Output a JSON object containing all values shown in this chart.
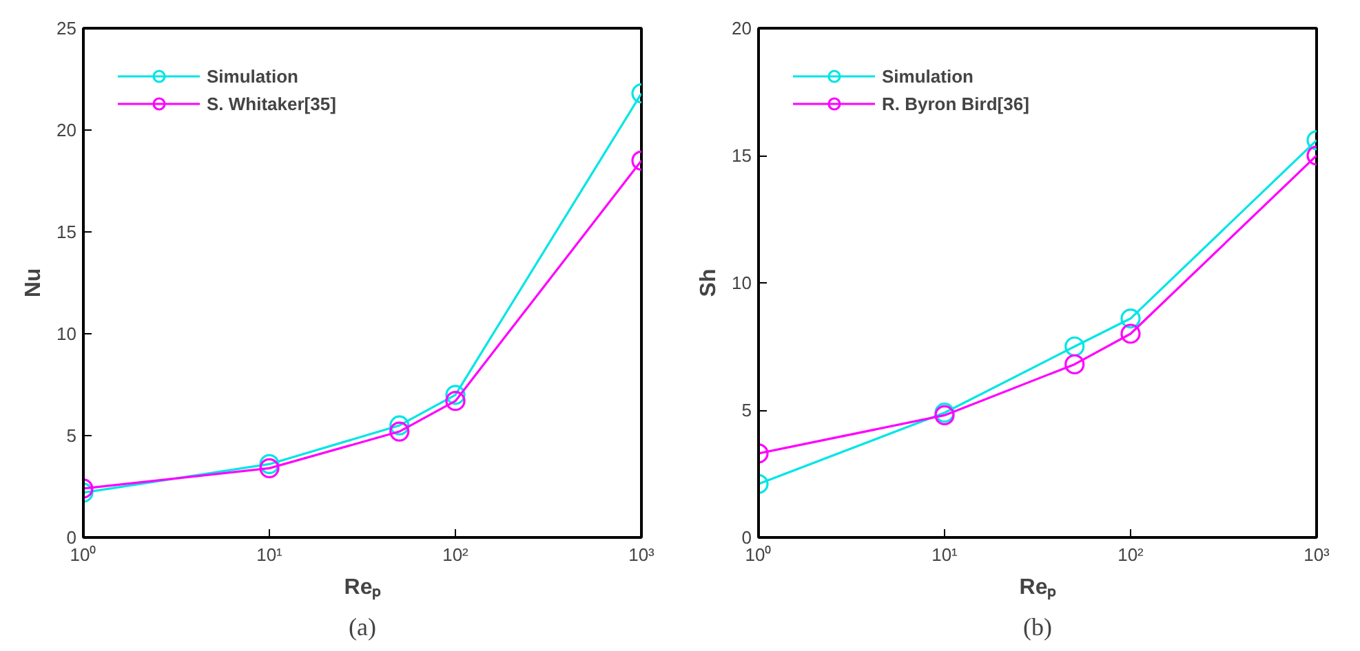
{
  "chart_data": [
    {
      "type": "line",
      "title": "(a)",
      "xlabel": "Reₚ",
      "ylabel": "Nu",
      "log": "x",
      "x": [
        1,
        10,
        50,
        100,
        1000
      ],
      "xlim": [
        1,
        1000
      ],
      "xticks": [
        {
          "value": 1,
          "label": "10⁰"
        },
        {
          "value": 10,
          "label": "10¹"
        },
        {
          "value": 100,
          "label": "10²"
        },
        {
          "value": 1000,
          "label": "10³"
        }
      ],
      "ylim": [
        0,
        25
      ],
      "yticks": [
        0,
        5,
        10,
        15,
        20,
        25
      ],
      "grid": false,
      "legend": "top left",
      "marker": "circle",
      "line_style": "solid",
      "series": [
        {
          "name": "Simulation",
          "color": "#00e5e5",
          "values": [
            2.2,
            3.6,
            5.5,
            7.0,
            21.8
          ]
        },
        {
          "name": "S. Whitaker[35]",
          "color": "#ff00ff",
          "values": [
            2.4,
            3.4,
            5.2,
            6.7,
            18.5
          ]
        }
      ]
    },
    {
      "type": "line",
      "title": "(b)",
      "xlabel": "Reₚ",
      "ylabel": "Sh",
      "log": "x",
      "x": [
        1,
        10,
        50,
        100,
        1000
      ],
      "xlim": [
        1,
        1000
      ],
      "xticks": [
        {
          "value": 1,
          "label": "10⁰"
        },
        {
          "value": 10,
          "label": "10¹"
        },
        {
          "value": 100,
          "label": "10²"
        },
        {
          "value": 1000,
          "label": "10³"
        }
      ],
      "ylim": [
        0,
        20
      ],
      "yticks": [
        0,
        5,
        10,
        15,
        20
      ],
      "grid": false,
      "legend": "top left",
      "marker": "circle",
      "line_style": "solid",
      "series": [
        {
          "name": "Simulation",
          "color": "#00e5e5",
          "values": [
            2.1,
            4.9,
            7.5,
            8.6,
            15.6
          ]
        },
        {
          "name": "R. Byron Bird[36]",
          "color": "#ff00ff",
          "values": [
            3.3,
            4.8,
            6.8,
            8.0,
            15.0
          ]
        }
      ]
    }
  ]
}
